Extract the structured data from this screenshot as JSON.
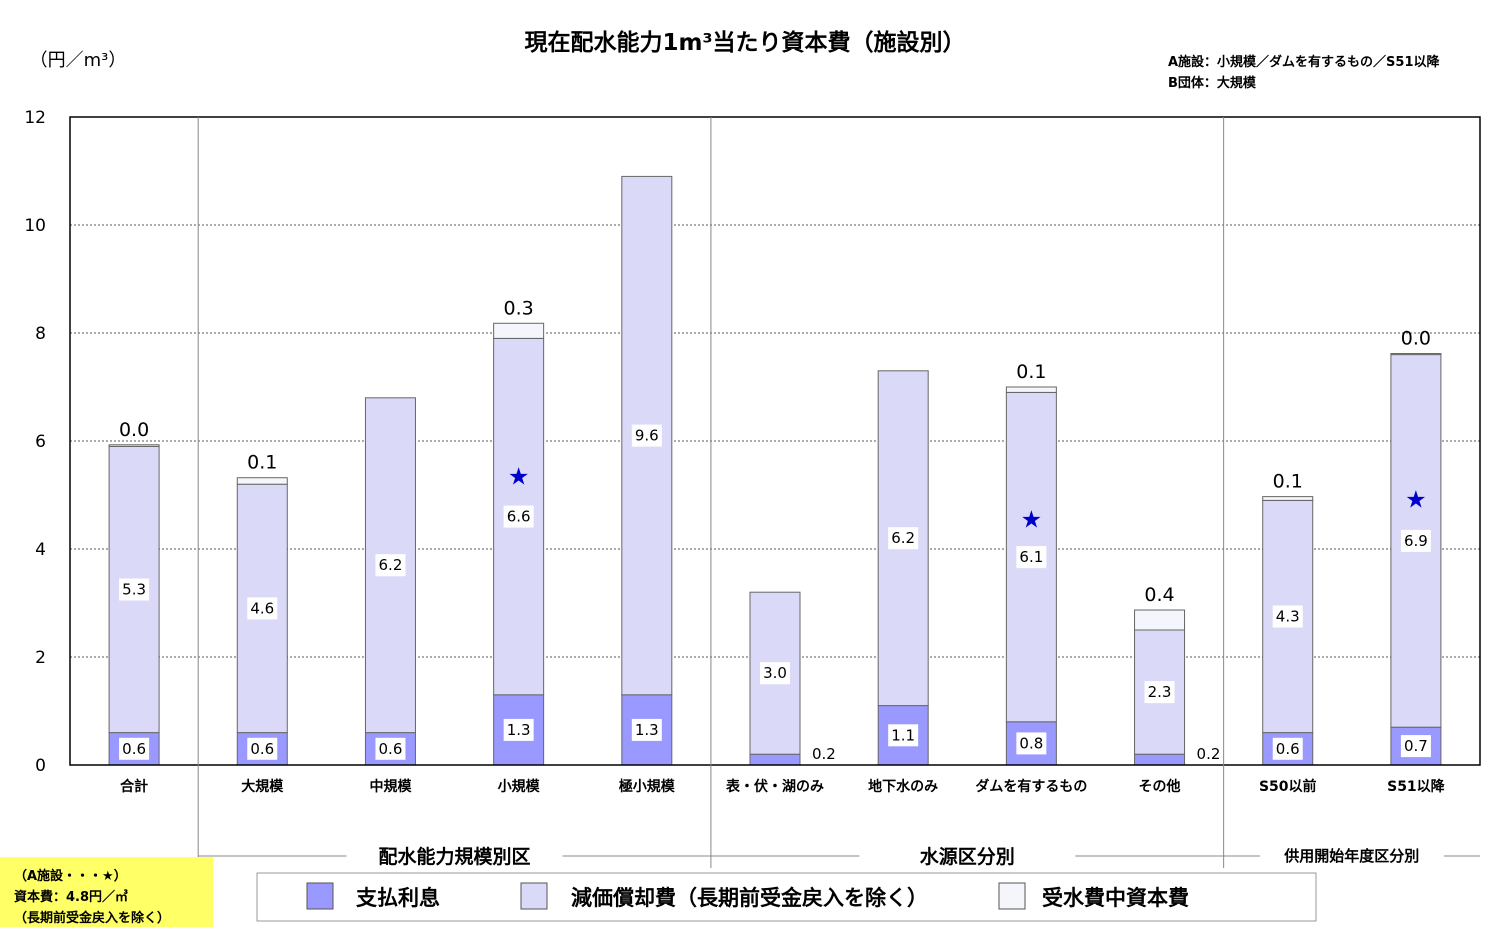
{
  "chart_data": {
    "type": "bar",
    "stacked": true,
    "title": "現在配水能力1m³当たり資本費（施設別）",
    "ylabel": "（円／m³）",
    "ylim": [
      0,
      12
    ],
    "yticks": [
      "0",
      "2",
      "4",
      "6",
      "8",
      "10",
      "12"
    ],
    "grid": "horizontal-dashed",
    "note_lines": [
      "A施設：小規模／ダムを有するもの／S51以降",
      "B団体：大規模"
    ],
    "categories": [
      "合計",
      "大規模",
      "中規模",
      "小規模",
      "極小規模",
      "表・伏・湖のみ",
      "地下水のみ",
      "ダムを有するもの",
      "その他",
      "S50以前",
      "S51以降"
    ],
    "groups": [
      {
        "label": "配水能力規模別区",
        "categories": [
          "大規模",
          "中規模",
          "小規模",
          "極小規模"
        ]
      },
      {
        "label": "水源区分別",
        "categories": [
          "表・伏・湖のみ",
          "地下水のみ",
          "ダムを有するもの",
          "その他"
        ]
      },
      {
        "label": "供用開始年度区分別",
        "categories": [
          "S50以前",
          "S51以降"
        ]
      }
    ],
    "series": [
      {
        "name": "支払利息",
        "color": "#9999ff",
        "values": [
          0.6,
          0.6,
          0.6,
          1.3,
          1.3,
          0.2,
          1.1,
          0.8,
          0.2,
          0.6,
          0.7
        ],
        "labels": [
          "0.6",
          "0.6",
          "0.6",
          "1.3",
          "1.3",
          "0.2",
          "1.1",
          "0.8",
          "0.2",
          "0.6",
          "0.7"
        ]
      },
      {
        "name": "減価償却費（長期前受金戻入を除く）",
        "color": "#dadaf8",
        "values": [
          5.3,
          4.6,
          6.2,
          6.6,
          9.6,
          3.0,
          6.2,
          6.1,
          2.3,
          4.3,
          6.9
        ],
        "labels": [
          "5.3",
          "4.6",
          "6.2",
          "6.6",
          "9.6",
          "3.0",
          "6.2",
          "6.1",
          "2.3",
          "4.3",
          "6.9"
        ]
      },
      {
        "name": "受水費中資本費",
        "color": "#f5f6fc",
        "values": [
          0.03,
          0.12,
          0.0,
          0.28,
          0.0,
          0.0,
          0.0,
          0.1,
          0.37,
          0.07,
          0.02
        ],
        "labels": [
          "0.0",
          "0.1",
          "",
          "0.3",
          "",
          "",
          "",
          "0.1",
          "0.4",
          "0.1",
          "0.0"
        ]
      }
    ],
    "star_markers": [
      "小規模",
      "ダムを有するもの",
      "S51以降"
    ],
    "legend": "bottom",
    "annotation_lines": [
      "（A施設・・・★）",
      "資本費：4.8円／㎥",
      "（長期前受金戻入を除く）"
    ]
  }
}
